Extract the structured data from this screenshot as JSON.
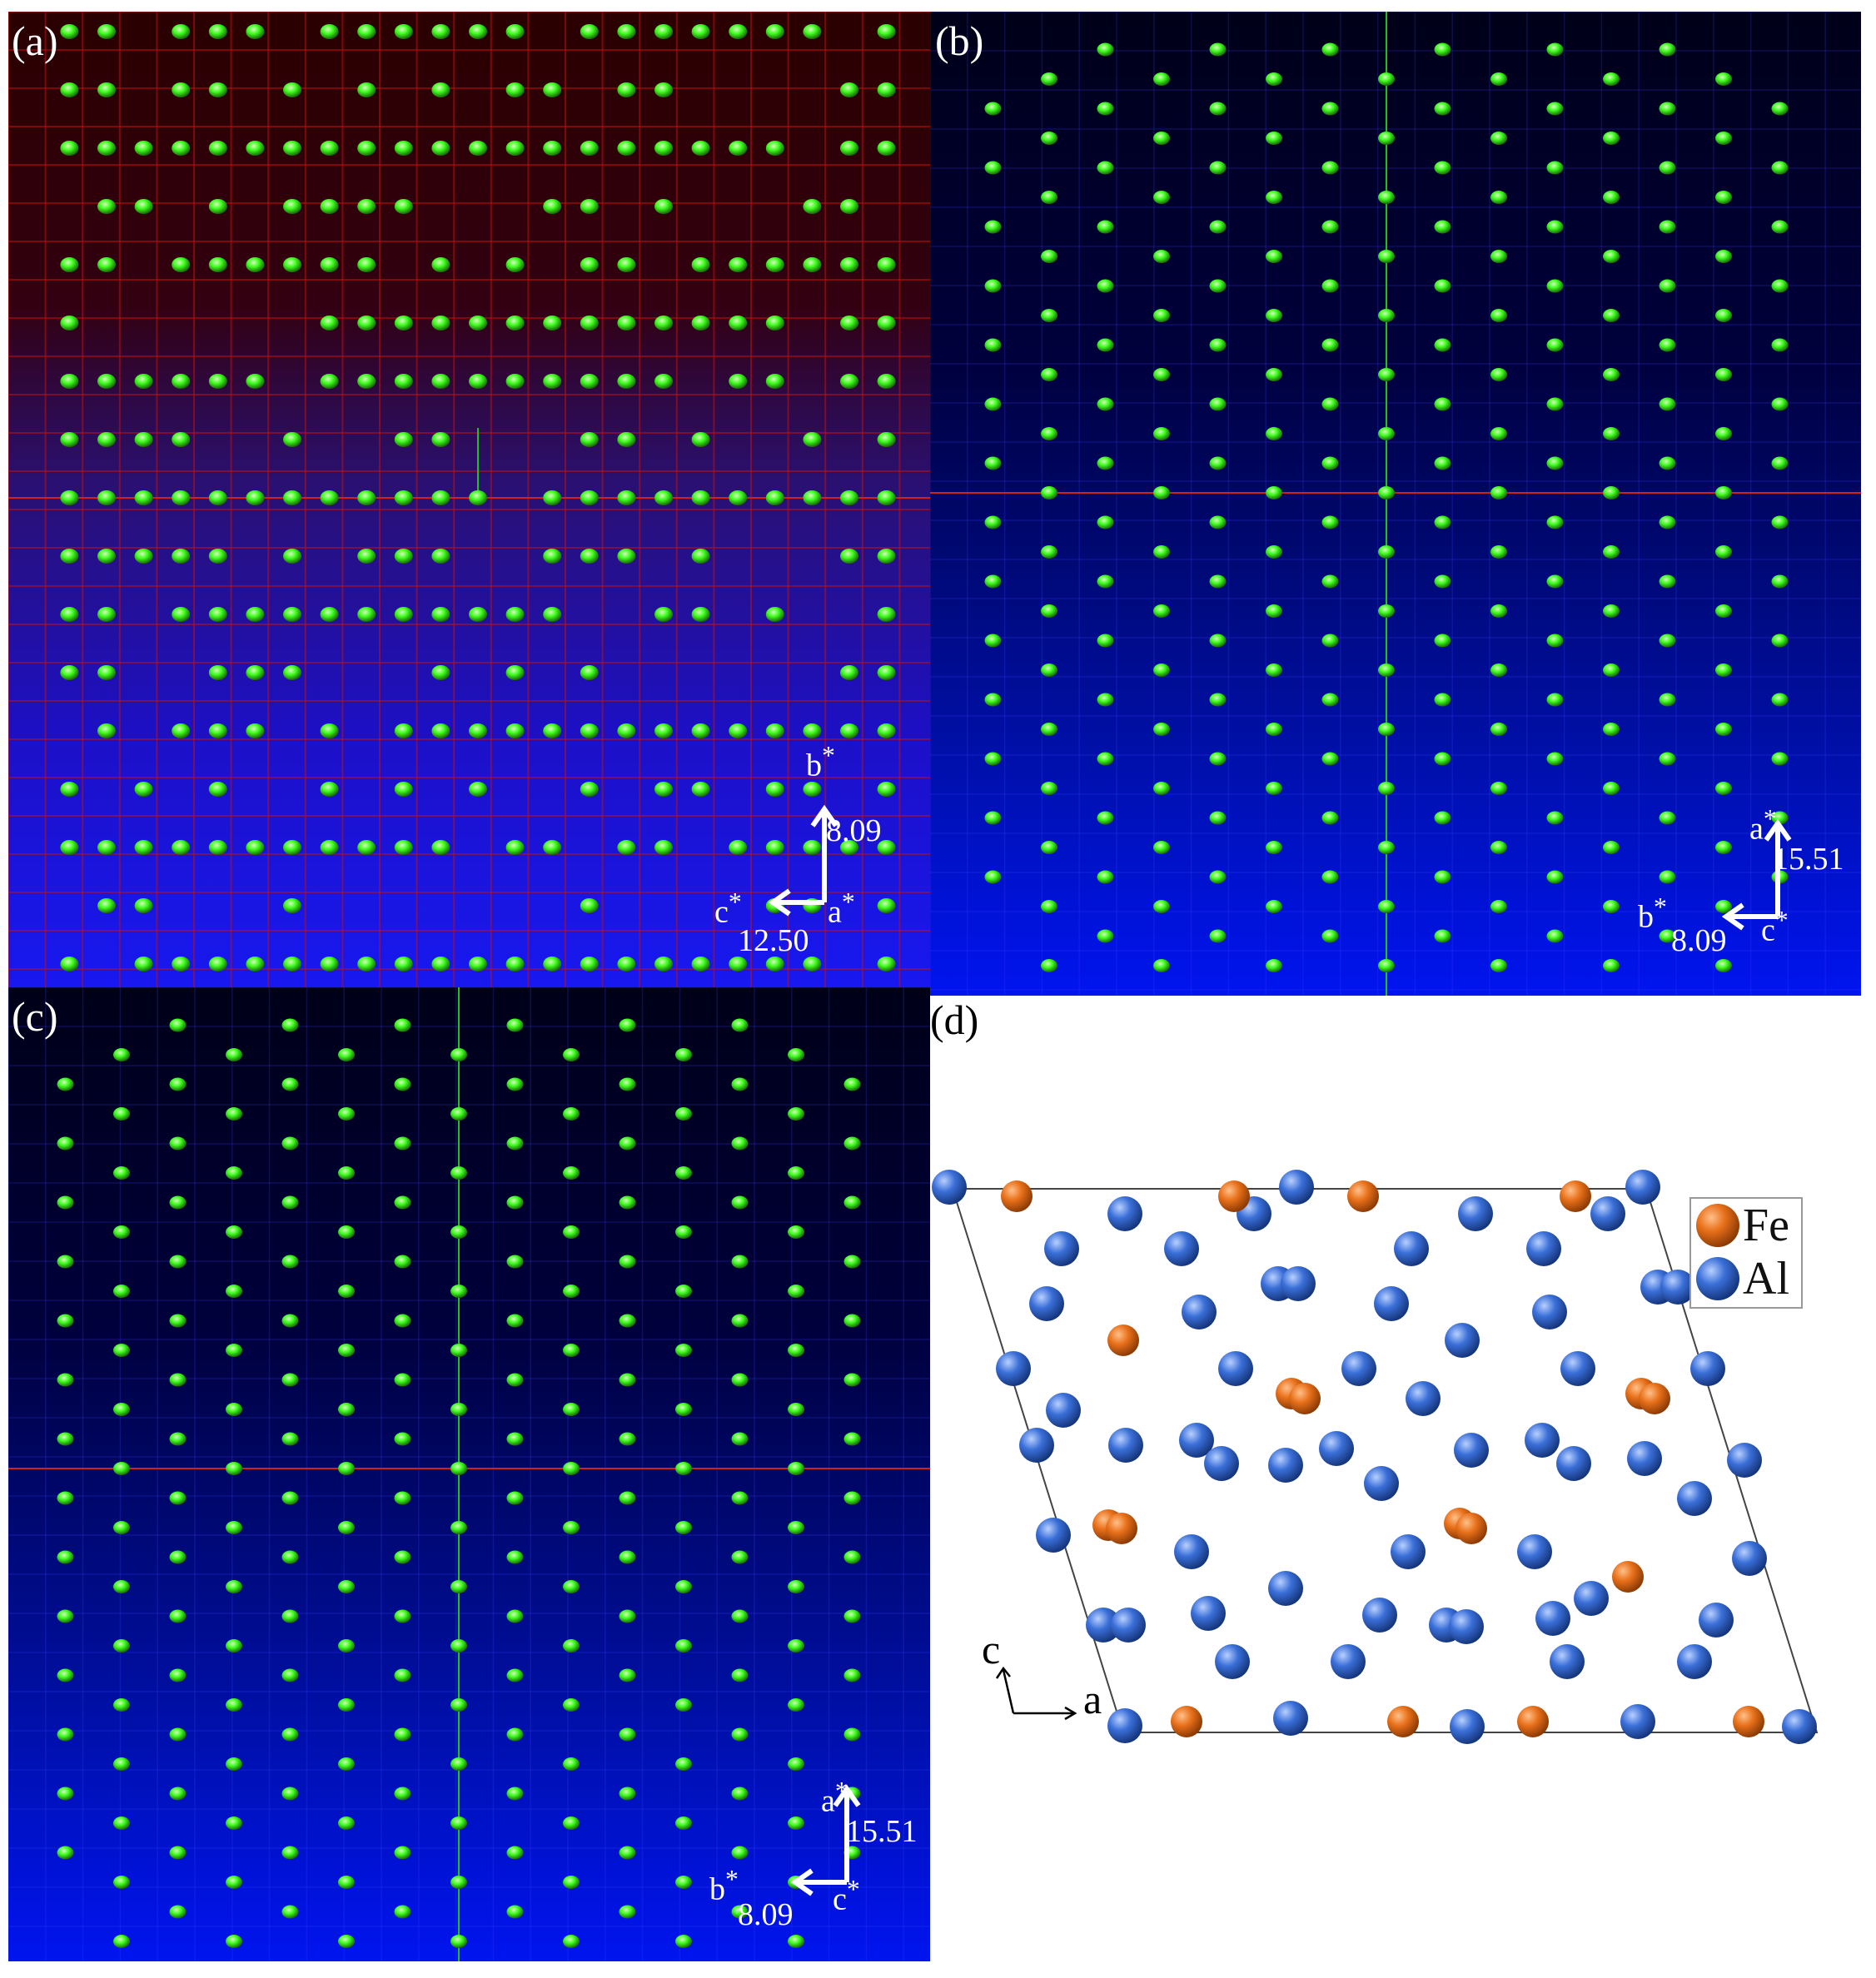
{
  "panels": {
    "a": {
      "label": "(a)",
      "axes": {
        "vertical": "b",
        "horizontal": "c",
        "normal": "a",
        "value_vertical": "8.09",
        "value_horizontal": "12.50"
      }
    },
    "b": {
      "label": "(b)",
      "axes": {
        "vertical": "a",
        "horizontal": "b",
        "normal": "c",
        "value_vertical": "15.51",
        "value_horizontal": "8.09"
      }
    },
    "c": {
      "label": "(c)",
      "axes": {
        "vertical": "a",
        "horizontal": "b",
        "normal": "c",
        "value_vertical": "15.51",
        "value_horizontal": "8.09"
      }
    },
    "d": {
      "label": "(d)",
      "axes": {
        "vertical": "c",
        "horizontal": "a"
      },
      "legend": [
        {
          "label": "Fe",
          "color": "#e8701a"
        },
        {
          "label": "Al",
          "color": "#3a6fd8"
        }
      ]
    }
  },
  "colors": {
    "spot": "#40ff20",
    "fe": "#e8701a",
    "al": "#3a6fd8"
  }
}
